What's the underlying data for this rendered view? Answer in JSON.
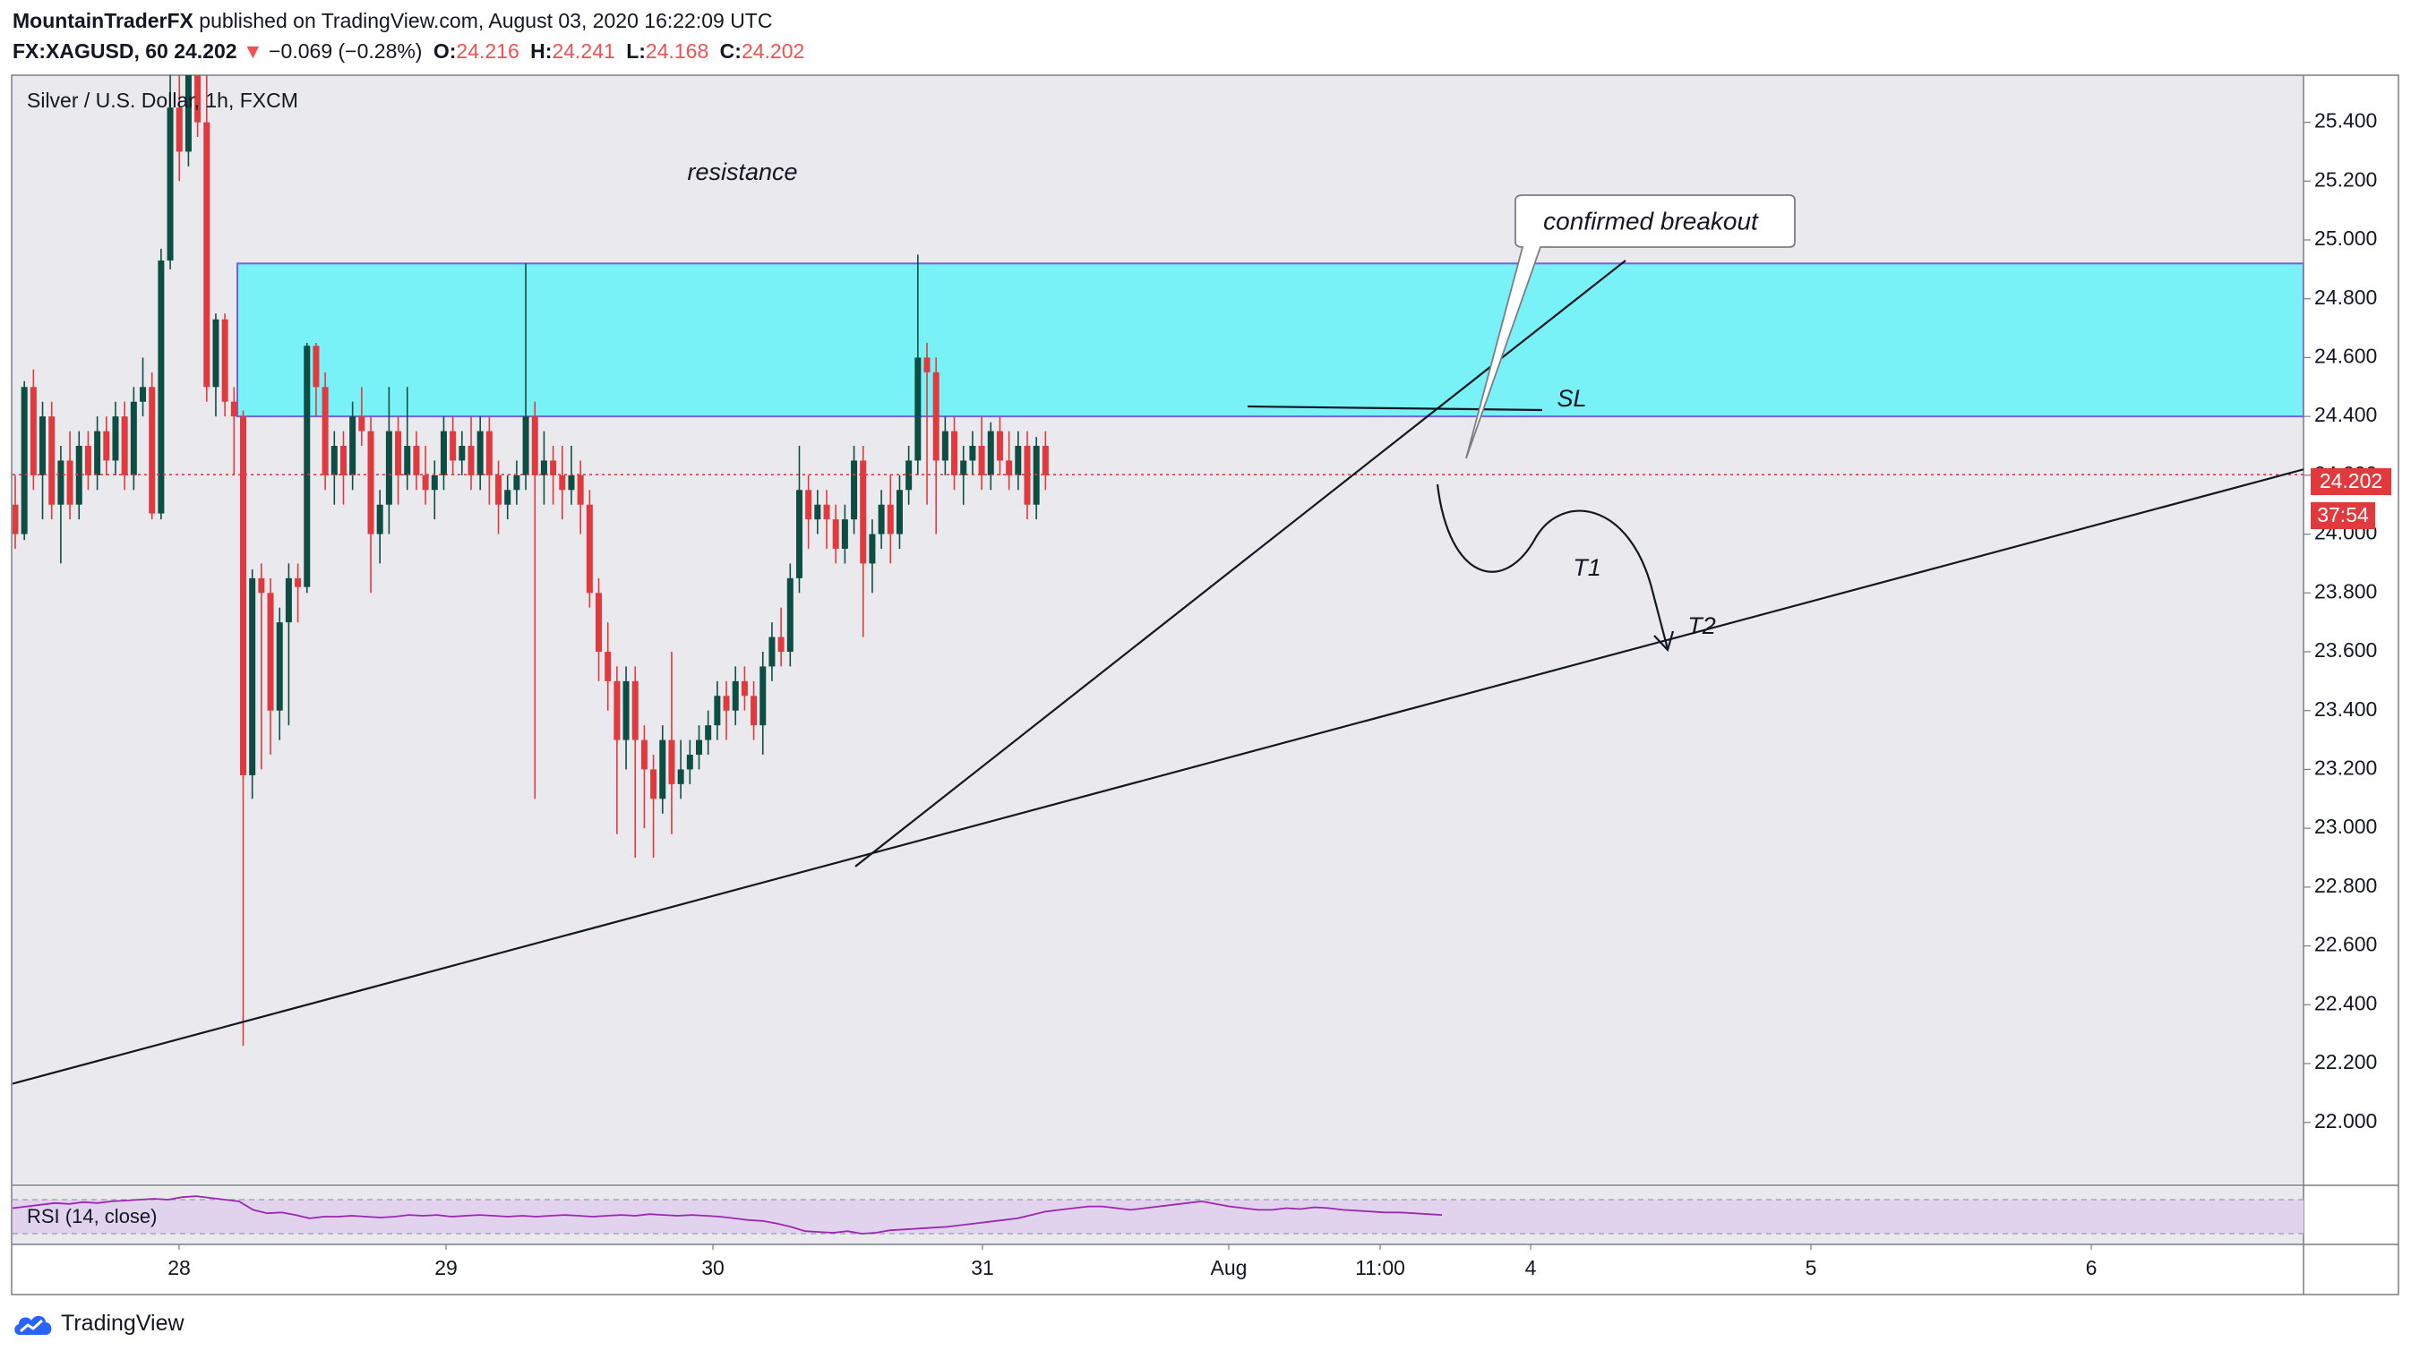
{
  "header": {
    "author": "MountainTraderFX",
    "published_text": "published on TradingView.com, August 03, 2020 16:22:09 UTC",
    "symbol": "FX:XAGUSD, 60",
    "last": "24.202",
    "change_arrow": "▼",
    "change": "−0.069 (−0.28%)",
    "o_label": "O:",
    "o_value": "24.216",
    "h_label": "H:",
    "h_value": "24.241",
    "l_label": "L:",
    "l_value": "24.168",
    "c_label": "C:",
    "c_value": "24.202"
  },
  "brand": {
    "name": "TradingView",
    "icon": "tradingview-cloud-icon"
  },
  "colors": {
    "up": "#0c4e44",
    "down": "#e0393e",
    "zone_fill": "#78f2f6",
    "zone_border": "#7b5fd6",
    "price_tag": "#e0393e",
    "rsi_line": "#9c27b0",
    "rsi_band": "#e1d3ee",
    "background": "#eaeaee"
  },
  "chart_data": {
    "type": "candlestick",
    "title": "Silver / U.S. Dollar, 1h, FXCM",
    "ylim": [
      21.85,
      25.56
    ],
    "y_ticks": [
      "25.400",
      "25.200",
      "25.000",
      "24.800",
      "24.600",
      "24.400",
      "24.200",
      "24.000",
      "23.800",
      "23.600",
      "23.400",
      "23.200",
      "23.000",
      "22.800",
      "22.600",
      "22.400",
      "22.200",
      "22.000"
    ],
    "x_ticks": [
      "28",
      "29",
      "30",
      "31",
      "Aug",
      "11:00",
      "4",
      "5",
      "6"
    ],
    "last_price": "24.202",
    "countdown": "37:54",
    "resistance_zone": [
      24.4,
      24.92
    ],
    "sl_level": 24.44,
    "candles": [
      [
        24.1,
        24.0,
        24.2,
        23.95
      ],
      [
        24.0,
        24.5,
        24.52,
        23.98
      ],
      [
        24.5,
        24.2,
        24.56,
        24.15
      ],
      [
        24.2,
        24.4,
        24.45,
        24.05
      ],
      [
        24.4,
        24.1,
        24.45,
        24.05
      ],
      [
        24.1,
        24.25,
        24.3,
        23.9
      ],
      [
        24.25,
        24.1,
        24.35,
        24.05
      ],
      [
        24.1,
        24.3,
        24.35,
        24.05
      ],
      [
        24.3,
        24.2,
        24.35,
        24.15
      ],
      [
        24.2,
        24.35,
        24.4,
        24.15
      ],
      [
        24.35,
        24.25,
        24.4,
        24.2
      ],
      [
        24.25,
        24.4,
        24.45,
        24.2
      ],
      [
        24.4,
        24.2,
        24.45,
        24.15
      ],
      [
        24.2,
        24.45,
        24.5,
        24.15
      ],
      [
        24.45,
        24.5,
        24.6,
        24.4
      ],
      [
        24.5,
        24.07,
        24.55,
        24.05
      ],
      [
        24.07,
        24.93,
        24.97,
        24.05
      ],
      [
        24.93,
        25.45,
        25.56,
        24.9
      ],
      [
        25.45,
        25.3,
        25.56,
        25.2
      ],
      [
        25.3,
        25.56,
        25.56,
        25.25
      ],
      [
        25.56,
        25.4,
        25.56,
        25.35
      ],
      [
        25.4,
        24.5,
        25.56,
        24.45
      ],
      [
        24.5,
        24.73,
        24.75,
        24.4
      ],
      [
        24.73,
        24.45,
        24.75,
        24.4
      ],
      [
        24.45,
        24.4,
        24.5,
        24.2
      ],
      [
        24.4,
        23.18,
        24.42,
        22.26
      ],
      [
        23.18,
        23.85,
        23.88,
        23.1
      ],
      [
        23.85,
        23.8,
        23.9,
        23.2
      ],
      [
        23.8,
        23.4,
        23.85,
        23.25
      ],
      [
        23.4,
        23.7,
        23.75,
        23.3
      ],
      [
        23.7,
        23.85,
        23.9,
        23.35
      ],
      [
        23.85,
        23.82,
        23.9,
        23.7
      ],
      [
        23.82,
        24.64,
        24.65,
        23.8
      ],
      [
        24.64,
        24.5,
        24.65,
        24.4
      ],
      [
        24.5,
        24.2,
        24.55,
        24.15
      ],
      [
        24.2,
        24.3,
        24.35,
        24.1
      ],
      [
        24.3,
        24.2,
        24.35,
        24.1
      ],
      [
        24.2,
        24.4,
        24.45,
        24.15
      ],
      [
        24.4,
        24.35,
        24.5,
        24.3
      ],
      [
        24.35,
        24.0,
        24.4,
        23.8
      ],
      [
        24.0,
        24.1,
        24.15,
        23.9
      ],
      [
        24.1,
        24.35,
        24.5,
        24.0
      ],
      [
        24.35,
        24.2,
        24.4,
        24.1
      ],
      [
        24.2,
        24.3,
        24.5,
        24.15
      ],
      [
        24.3,
        24.2,
        24.35,
        24.15
      ],
      [
        24.2,
        24.15,
        24.3,
        24.1
      ],
      [
        24.15,
        24.2,
        24.25,
        24.05
      ],
      [
        24.2,
        24.35,
        24.4,
        24.15
      ],
      [
        24.35,
        24.25,
        24.4,
        24.2
      ],
      [
        24.25,
        24.3,
        24.35,
        24.2
      ],
      [
        24.3,
        24.2,
        24.4,
        24.15
      ],
      [
        24.2,
        24.35,
        24.4,
        24.15
      ],
      [
        24.35,
        24.2,
        24.4,
        24.1
      ],
      [
        24.2,
        24.1,
        24.25,
        24.0
      ],
      [
        24.1,
        24.15,
        24.2,
        24.05
      ],
      [
        24.15,
        24.2,
        24.25,
        24.1
      ],
      [
        24.2,
        24.4,
        24.92,
        24.15
      ],
      [
        24.4,
        24.2,
        24.45,
        23.1
      ],
      [
        24.2,
        24.25,
        24.35,
        24.1
      ],
      [
        24.25,
        24.2,
        24.3,
        24.1
      ],
      [
        24.2,
        24.15,
        24.3,
        24.05
      ],
      [
        24.15,
        24.2,
        24.3,
        24.1
      ],
      [
        24.2,
        24.1,
        24.25,
        24.0
      ],
      [
        24.1,
        23.8,
        24.15,
        23.75
      ],
      [
        23.8,
        23.6,
        23.85,
        23.5
      ],
      [
        23.6,
        23.5,
        23.7,
        23.4
      ],
      [
        23.5,
        23.3,
        23.55,
        22.98
      ],
      [
        23.3,
        23.5,
        23.55,
        23.2
      ],
      [
        23.5,
        23.3,
        23.55,
        22.9
      ],
      [
        23.3,
        23.2,
        23.35,
        23.0
      ],
      [
        23.2,
        23.1,
        23.25,
        22.9
      ],
      [
        23.1,
        23.3,
        23.35,
        23.05
      ],
      [
        23.3,
        23.15,
        23.6,
        22.98
      ],
      [
        23.15,
        23.2,
        23.3,
        23.1
      ],
      [
        23.2,
        23.25,
        23.3,
        23.15
      ],
      [
        23.25,
        23.3,
        23.35,
        23.2
      ],
      [
        23.3,
        23.35,
        23.4,
        23.25
      ],
      [
        23.35,
        23.45,
        23.5,
        23.3
      ],
      [
        23.45,
        23.4,
        23.5,
        23.3
      ],
      [
        23.4,
        23.5,
        23.55,
        23.35
      ],
      [
        23.5,
        23.45,
        23.55,
        23.4
      ],
      [
        23.45,
        23.35,
        23.5,
        23.3
      ],
      [
        23.35,
        23.55,
        23.6,
        23.25
      ],
      [
        23.55,
        23.65,
        23.7,
        23.5
      ],
      [
        23.65,
        23.6,
        23.75,
        23.55
      ],
      [
        23.6,
        23.85,
        23.9,
        23.55
      ],
      [
        23.85,
        24.15,
        24.3,
        23.8
      ],
      [
        24.15,
        24.05,
        24.2,
        23.95
      ],
      [
        24.05,
        24.1,
        24.15,
        24.0
      ],
      [
        24.1,
        24.05,
        24.15,
        23.95
      ],
      [
        24.05,
        23.95,
        24.1,
        23.9
      ],
      [
        23.95,
        24.05,
        24.1,
        23.9
      ],
      [
        24.05,
        24.25,
        24.3,
        24.0
      ],
      [
        24.25,
        23.9,
        24.3,
        23.65
      ],
      [
        23.9,
        24.0,
        24.05,
        23.8
      ],
      [
        24.0,
        24.1,
        24.15,
        23.95
      ],
      [
        24.1,
        24.0,
        24.2,
        23.9
      ],
      [
        24.0,
        24.15,
        24.2,
        23.95
      ],
      [
        24.15,
        24.25,
        24.3,
        24.1
      ],
      [
        24.25,
        24.6,
        24.95,
        24.2
      ],
      [
        24.6,
        24.55,
        24.65,
        24.1
      ],
      [
        24.55,
        24.25,
        24.6,
        24.0
      ],
      [
        24.25,
        24.35,
        24.4,
        24.2
      ],
      [
        24.35,
        24.2,
        24.4,
        24.15
      ],
      [
        24.2,
        24.25,
        24.3,
        24.1
      ],
      [
        24.25,
        24.3,
        24.35,
        24.2
      ],
      [
        24.3,
        24.2,
        24.4,
        24.15
      ],
      [
        24.2,
        24.35,
        24.38,
        24.15
      ],
      [
        24.35,
        24.25,
        24.4,
        24.2
      ],
      [
        24.25,
        24.2,
        24.35,
        24.15
      ],
      [
        24.2,
        24.3,
        24.35,
        24.15
      ],
      [
        24.3,
        24.1,
        24.35,
        24.05
      ],
      [
        24.1,
        24.3,
        24.33,
        24.05
      ],
      [
        24.3,
        24.2,
        24.35,
        24.15
      ]
    ],
    "trendlines": [
      {
        "x0": 0,
        "y0": 22.12,
        "x1": 2572,
        "y1": 24.22
      },
      {
        "x0": 955,
        "y0": 22.87,
        "x1": 1815,
        "y1": 24.93
      }
    ],
    "annotations": [
      {
        "text": "resistance",
        "price": 25.21
      },
      {
        "text": "confirmed breakout"
      },
      {
        "text": "SL"
      },
      {
        "text": "T1"
      },
      {
        "text": "T2"
      }
    ],
    "rsi": {
      "label": "RSI (14, close)",
      "values": [
        60,
        62,
        64,
        66,
        65,
        67,
        66,
        68,
        69,
        70,
        71,
        70,
        73,
        74,
        72,
        70,
        68,
        58,
        54,
        55,
        52,
        48,
        50,
        50,
        51,
        50,
        49,
        50,
        52,
        51,
        52,
        50,
        51,
        52,
        51,
        50,
        51,
        50,
        51,
        52,
        51,
        50,
        51,
        52,
        51,
        53,
        52,
        51,
        52,
        51,
        50,
        48,
        46,
        45,
        42,
        38,
        33,
        32,
        31,
        33,
        30,
        31,
        34,
        35,
        36,
        37,
        38,
        40,
        42,
        44,
        46,
        48,
        52,
        56,
        58,
        60,
        62,
        62,
        60,
        58,
        60,
        62,
        64,
        66,
        68,
        65,
        62,
        60,
        58,
        58,
        60,
        59,
        61,
        60,
        58,
        57,
        56,
        55,
        55,
        54,
        53,
        52
      ]
    }
  }
}
